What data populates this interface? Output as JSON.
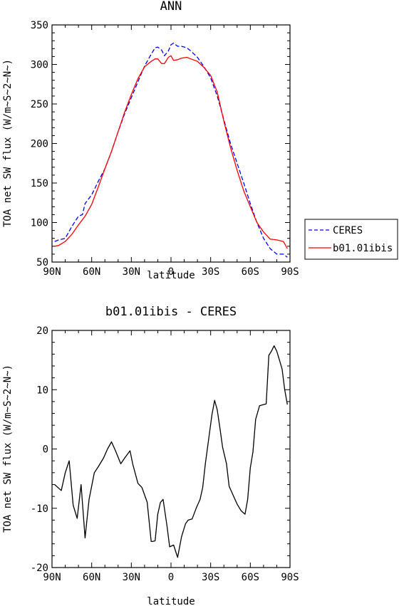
{
  "chart_data": [
    {
      "type": "line",
      "title": "ANN",
      "xlabel": "latitude",
      "ylabel": "TOA net SW flux (W/m~S~2~N~)",
      "xlim": [
        -90,
        90
      ],
      "ylim": [
        50,
        350
      ],
      "xticks": [
        {
          "value": -90,
          "label": "90N"
        },
        {
          "value": -60,
          "label": "60N"
        },
        {
          "value": -30,
          "label": "30N"
        },
        {
          "value": 0,
          "label": "0"
        },
        {
          "value": 30,
          "label": "30S"
        },
        {
          "value": 60,
          "label": "60S"
        },
        {
          "value": 90,
          "label": "90S"
        }
      ],
      "yticks": [
        50,
        100,
        150,
        200,
        250,
        300,
        350
      ],
      "legend_position": "outside-right",
      "series": [
        {
          "name": "CERES",
          "color": "#0000ff",
          "dash": "dashed",
          "x": [
            -88,
            -85,
            -80,
            -75,
            -70,
            -67,
            -65,
            -60,
            -55,
            -50,
            -45,
            -40,
            -35,
            -30,
            -25,
            -20,
            -15,
            -12,
            -10,
            -7,
            -5,
            -2,
            0,
            2,
            5,
            8,
            12,
            15,
            20,
            25,
            30,
            35,
            40,
            45,
            50,
            55,
            60,
            65,
            70,
            75,
            80,
            85,
            88
          ],
          "y": [
            76,
            78,
            80,
            95,
            108,
            110,
            124,
            135,
            152,
            168,
            190,
            215,
            238,
            258,
            278,
            298,
            313,
            321,
            322,
            318,
            311,
            317,
            325,
            327,
            323,
            323,
            321,
            317,
            309,
            297,
            283,
            260,
            230,
            200,
            175,
            150,
            124,
            100,
            80,
            67,
            60,
            60,
            56
          ]
        },
        {
          "name": "b01.01ibis",
          "color": "#ff0000",
          "dash": "solid",
          "x": [
            -88,
            -85,
            -80,
            -75,
            -70,
            -65,
            -60,
            -55,
            -50,
            -45,
            -40,
            -35,
            -30,
            -25,
            -20,
            -15,
            -12,
            -10,
            -7,
            -5,
            -2,
            0,
            2,
            5,
            8,
            12,
            15,
            20,
            25,
            30,
            35,
            40,
            45,
            50,
            55,
            60,
            65,
            70,
            75,
            80,
            85,
            88
          ],
          "y": [
            70,
            71,
            76,
            85,
            97,
            108,
            123,
            145,
            168,
            190,
            215,
            240,
            262,
            282,
            297,
            304,
            307,
            307,
            301,
            301,
            309,
            311,
            305,
            306,
            308,
            309,
            307,
            304,
            296,
            286,
            265,
            228,
            195,
            166,
            140,
            120,
            100,
            88,
            79,
            78,
            76,
            67
          ]
        }
      ]
    },
    {
      "type": "line",
      "title": "b01.01ibis - CERES",
      "xlabel": "latitude",
      "ylabel": "TOA net SW flux (W/m~S~2~N~)",
      "xlim": [
        -90,
        90
      ],
      "ylim": [
        -20,
        20
      ],
      "xticks": [
        {
          "value": -90,
          "label": "90N"
        },
        {
          "value": -60,
          "label": "60N"
        },
        {
          "value": -30,
          "label": "30N"
        },
        {
          "value": 0,
          "label": "0"
        },
        {
          "value": 30,
          "label": "30S"
        },
        {
          "value": 60,
          "label": "60S"
        },
        {
          "value": 90,
          "label": "90S"
        }
      ],
      "yticks": [
        -20,
        -10,
        0,
        10,
        20
      ],
      "series": [
        {
          "color": "#000000",
          "x": [
            -88,
            -83,
            -80,
            -77,
            -74,
            -71,
            -68,
            -65,
            -62,
            -58,
            -55,
            -51,
            -48,
            -45,
            -42,
            -38,
            -35,
            -31,
            -29,
            -25,
            -22,
            -18,
            -15,
            -14,
            -12,
            -10,
            -8,
            -6,
            -3,
            -1,
            2,
            4,
            5,
            8,
            11,
            13,
            16,
            19,
            22,
            24,
            26,
            29,
            31,
            33,
            35,
            37,
            39,
            42,
            44,
            47,
            50,
            53,
            56,
            58,
            60,
            62,
            64,
            67,
            70,
            72,
            74,
            76,
            78,
            80,
            82,
            84,
            86,
            88
          ],
          "y": [
            -6,
            -7,
            -4,
            -2,
            -9.5,
            -11.7,
            -6,
            -15,
            -8.5,
            -4,
            -3,
            -1.5,
            0,
            1.2,
            -0.3,
            -2.5,
            -1.5,
            -0.3,
            -2.5,
            -5.8,
            -6.5,
            -9,
            -15.6,
            -15.6,
            -15.5,
            -11,
            -9,
            -8.5,
            -13,
            -16.5,
            -16.2,
            -17.6,
            -18.3,
            -14.8,
            -12.6,
            -12,
            -11.8,
            -10,
            -8.5,
            -6.5,
            -2.5,
            2.5,
            5.8,
            8.2,
            6.6,
            3.5,
            0.3,
            -2.5,
            -6.3,
            -7.8,
            -9.3,
            -10.4,
            -11,
            -8.5,
            -3.2,
            -0.5,
            5,
            7.3,
            7.5,
            7.6,
            15.8,
            16.5,
            17.4,
            16.5,
            15,
            13.5,
            10,
            7.5
          ]
        }
      ]
    }
  ]
}
